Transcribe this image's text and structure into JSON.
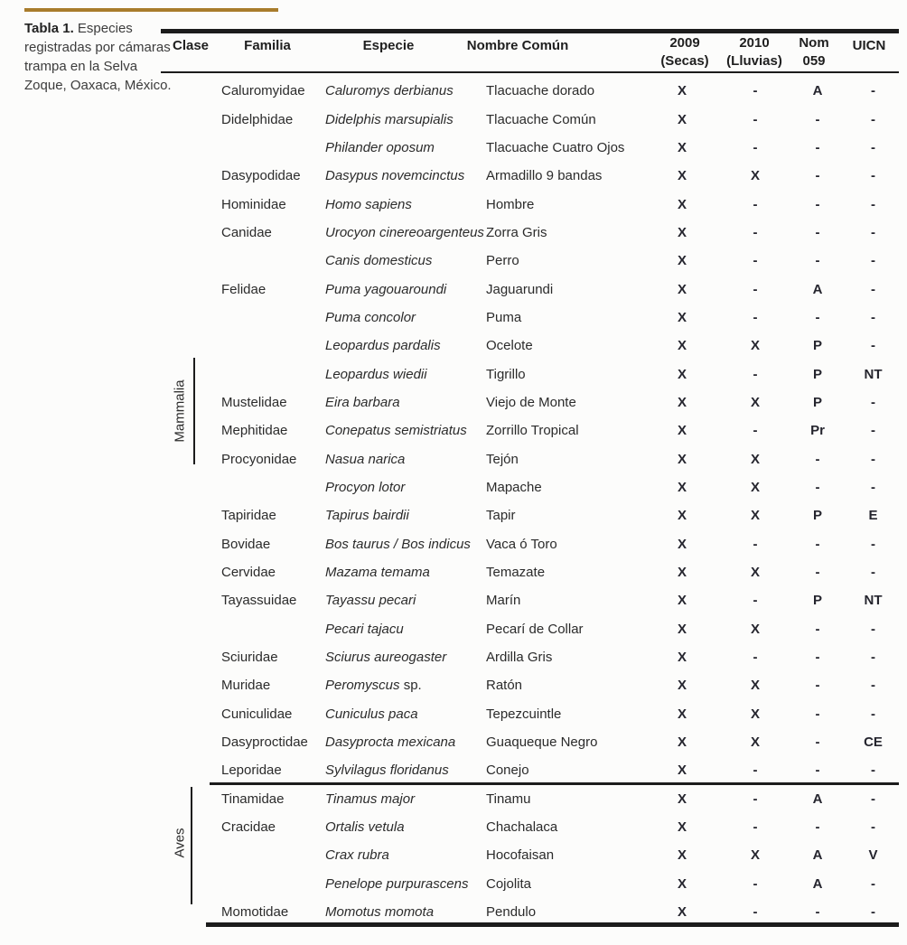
{
  "caption": {
    "label": "Tabla 1.",
    "text": " Especies registradas por cámaras trampa en la Selva Zoque, Oaxaca, México."
  },
  "colors": {
    "accent_gold": "#a87c2b",
    "rule_black": "#1c1c1c",
    "text": "#2b2b2b"
  },
  "table": {
    "headers": {
      "clase": "Clase",
      "familia": "Familia",
      "especie": "Especie",
      "nombre": "Nombre Común",
      "y2009_line1": "2009",
      "y2009_line2": "(Secas)",
      "y2010_line1": "2010",
      "y2010_line2": "(Lluvias)",
      "nom_line1": "Nom",
      "nom_line2": "059",
      "uicn": "UICN"
    },
    "groups": [
      {
        "name": "Mammalia"
      },
      {
        "name": "Aves"
      }
    ],
    "rows": [
      {
        "group": "Mammalia",
        "familia": "Caluromyidae",
        "especie": "Caluromys derbianus",
        "especie_plain": "",
        "nombre": "Tlacuache dorado",
        "y2009": "X",
        "y2010": "-",
        "nom059": "A",
        "uicn": "-"
      },
      {
        "group": "Mammalia",
        "familia": "Didelphidae",
        "especie": "Didelphis marsupialis",
        "especie_plain": "",
        "nombre": "Tlacuache Común",
        "y2009": "X",
        "y2010": "-",
        "nom059": "-",
        "uicn": "-"
      },
      {
        "group": "Mammalia",
        "familia": "",
        "especie": "Philander oposum",
        "especie_plain": "",
        "nombre": "Tlacuache Cuatro Ojos",
        "y2009": "X",
        "y2010": "-",
        "nom059": "-",
        "uicn": "-"
      },
      {
        "group": "Mammalia",
        "familia": "Dasypodidae",
        "especie": "Dasypus novemcinctus",
        "especie_plain": "",
        "nombre": "Armadillo 9 bandas",
        "y2009": "X",
        "y2010": "X",
        "nom059": "-",
        "uicn": "-"
      },
      {
        "group": "Mammalia",
        "familia": "Hominidae",
        "especie": "Homo sapiens",
        "especie_plain": "",
        "nombre": "Hombre",
        "y2009": "X",
        "y2010": "-",
        "nom059": "-",
        "uicn": "-"
      },
      {
        "group": "Mammalia",
        "familia": "Canidae",
        "especie": "Urocyon cinereoargenteus",
        "especie_plain": "",
        "nombre": "Zorra Gris",
        "y2009": "X",
        "y2010": "-",
        "nom059": "-",
        "uicn": "-"
      },
      {
        "group": "Mammalia",
        "familia": "",
        "especie": "Canis domesticus",
        "especie_plain": "",
        "nombre": "Perro",
        "y2009": "X",
        "y2010": "-",
        "nom059": "-",
        "uicn": "-"
      },
      {
        "group": "Mammalia",
        "familia": "Felidae",
        "especie": "Puma yagouaroundi",
        "especie_plain": "",
        "nombre": "Jaguarundi",
        "y2009": "X",
        "y2010": "-",
        "nom059": "A",
        "uicn": "-"
      },
      {
        "group": "Mammalia",
        "familia": "",
        "especie": "Puma concolor",
        "especie_plain": "",
        "nombre": "Puma",
        "y2009": "X",
        "y2010": "-",
        "nom059": "-",
        "uicn": "-"
      },
      {
        "group": "Mammalia",
        "familia": "",
        "especie": "Leopardus pardalis",
        "especie_plain": "",
        "nombre": "Ocelote",
        "y2009": "X",
        "y2010": "X",
        "nom059": "P",
        "uicn": "-"
      },
      {
        "group": "Mammalia",
        "familia": "",
        "especie": "Leopardus wiedii",
        "especie_plain": "",
        "nombre": "Tigrillo",
        "y2009": "X",
        "y2010": "-",
        "nom059": "P",
        "uicn": "NT"
      },
      {
        "group": "Mammalia",
        "familia": "Mustelidae",
        "especie": "Eira barbara",
        "especie_plain": "",
        "nombre": "Viejo de Monte",
        "y2009": "X",
        "y2010": "X",
        "nom059": "P",
        "uicn": "-"
      },
      {
        "group": "Mammalia",
        "familia": "Mephitidae",
        "especie": "Conepatus semistriatus",
        "especie_plain": "",
        "nombre": "Zorrillo Tropical",
        "y2009": "X",
        "y2010": "-",
        "nom059": "Pr",
        "uicn": "-"
      },
      {
        "group": "Mammalia",
        "familia": "Procyonidae",
        "especie": "Nasua narica",
        "especie_plain": "",
        "nombre": "Tejón",
        "y2009": "X",
        "y2010": "X",
        "nom059": "-",
        "uicn": "-"
      },
      {
        "group": "Mammalia",
        "familia": "",
        "especie": "Procyon lotor",
        "especie_plain": "",
        "nombre": "Mapache",
        "y2009": "X",
        "y2010": "X",
        "nom059": "-",
        "uicn": "-"
      },
      {
        "group": "Mammalia",
        "familia": "Tapiridae",
        "especie": "Tapirus bairdii",
        "especie_plain": "",
        "nombre": "Tapir",
        "y2009": "X",
        "y2010": "X",
        "nom059": "P",
        "uicn": "E"
      },
      {
        "group": "Mammalia",
        "familia": "Bovidae",
        "especie": "Bos taurus / Bos indicus",
        "especie_plain": "",
        "nombre": "Vaca ó Toro",
        "y2009": "X",
        "y2010": "-",
        "nom059": "-",
        "uicn": "-"
      },
      {
        "group": "Mammalia",
        "familia": "Cervidae",
        "especie": "Mazama temama",
        "especie_plain": "",
        "nombre": "Temazate",
        "y2009": "X",
        "y2010": "X",
        "nom059": "-",
        "uicn": "-"
      },
      {
        "group": "Mammalia",
        "familia": "Tayassuidae",
        "especie": "Tayassu pecari",
        "especie_plain": "",
        "nombre": "Marín",
        "y2009": "X",
        "y2010": "-",
        "nom059": "P",
        "uicn": "NT"
      },
      {
        "group": "Mammalia",
        "familia": "",
        "especie": "Pecari tajacu",
        "especie_plain": "",
        "nombre": "Pecarí de Collar",
        "y2009": "X",
        "y2010": "X",
        "nom059": "-",
        "uicn": "-"
      },
      {
        "group": "Mammalia",
        "familia": "Sciuridae",
        "especie": "Sciurus aureogaster",
        "especie_plain": "",
        "nombre": "Ardilla Gris",
        "y2009": "X",
        "y2010": "-",
        "nom059": "-",
        "uicn": "-"
      },
      {
        "group": "Mammalia",
        "familia": "Muridae",
        "especie": "Peromyscus",
        "especie_plain": " sp.",
        "nombre": "Ratón",
        "y2009": "X",
        "y2010": "X",
        "nom059": "-",
        "uicn": "-"
      },
      {
        "group": "Mammalia",
        "familia": "Cuniculidae",
        "especie": "Cuniculus paca",
        "especie_plain": "",
        "nombre": "Tepezcuintle",
        "y2009": "X",
        "y2010": "X",
        "nom059": "-",
        "uicn": "-"
      },
      {
        "group": "Mammalia",
        "familia": "Dasyproctidae",
        "especie": "Dasyprocta mexicana",
        "especie_plain": "",
        "nombre": "Guaqueque Negro",
        "y2009": "X",
        "y2010": "X",
        "nom059": "-",
        "uicn": "CE"
      },
      {
        "group": "Mammalia",
        "familia": "Leporidae",
        "especie": "Sylvilagus floridanus",
        "especie_plain": "",
        "nombre": "Conejo",
        "y2009": "X",
        "y2010": "-",
        "nom059": "-",
        "uicn": "-"
      },
      {
        "group": "Aves",
        "familia": "Tinamidae",
        "especie": "Tinamus major",
        "especie_plain": "",
        "nombre": "Tinamu",
        "y2009": "X",
        "y2010": "-",
        "nom059": "A",
        "uicn": "-"
      },
      {
        "group": "Aves",
        "familia": "Cracidae",
        "especie": "Ortalis vetula",
        "especie_plain": "",
        "nombre": "Chachalaca",
        "y2009": "X",
        "y2010": "-",
        "nom059": "-",
        "uicn": "-"
      },
      {
        "group": "Aves",
        "familia": "",
        "especie": "Crax rubra",
        "especie_plain": "",
        "nombre": "Hocofaisan",
        "y2009": "X",
        "y2010": "X",
        "nom059": "A",
        "uicn": "V"
      },
      {
        "group": "Aves",
        "familia": "",
        "especie": "Penelope purpurascens",
        "especie_plain": "",
        "nombre": "Cojolita",
        "y2009": "X",
        "y2010": "-",
        "nom059": "A",
        "uicn": "-"
      },
      {
        "group": "Aves",
        "familia": "Momotidae",
        "especie": "Momotus momota",
        "especie_plain": "",
        "nombre": "Pendulo",
        "y2009": "X",
        "y2010": "-",
        "nom059": "-",
        "uicn": "-"
      }
    ]
  }
}
